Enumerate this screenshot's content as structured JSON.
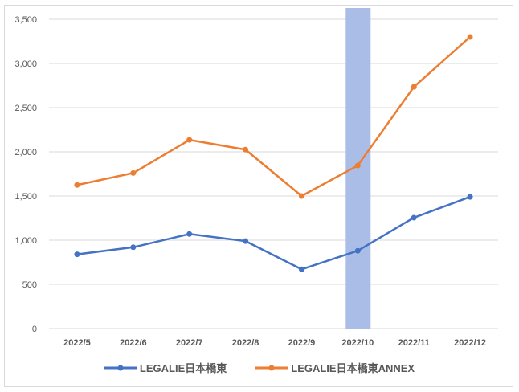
{
  "chart_data": {
    "type": "line",
    "categories": [
      "2022/5",
      "2022/6",
      "2022/7",
      "2022/8",
      "2022/9",
      "2022/10",
      "2022/11",
      "2022/12"
    ],
    "ylim": [
      0,
      3500
    ],
    "yticks": [
      0,
      500,
      1000,
      1500,
      2000,
      2500,
      3000,
      3500
    ],
    "ytick_labels": [
      "0",
      "500",
      "1,000",
      "1,500",
      "2,000",
      "2,500",
      "3,000",
      "3,500"
    ],
    "grid": true,
    "legend_position": "bottom",
    "highlight_category": "2022/10",
    "highlight_color": "#a9bde6",
    "series": [
      {
        "name": "LEGALIE日本橋東",
        "color": "#4472c4",
        "values": [
          840,
          920,
          1070,
          990,
          670,
          880,
          1255,
          1490
        ]
      },
      {
        "name": "LEGALIE日本橋東ANNEX",
        "color": "#ed7d31",
        "values": [
          1625,
          1760,
          2135,
          2025,
          1500,
          1845,
          2735,
          3300
        ]
      }
    ]
  }
}
